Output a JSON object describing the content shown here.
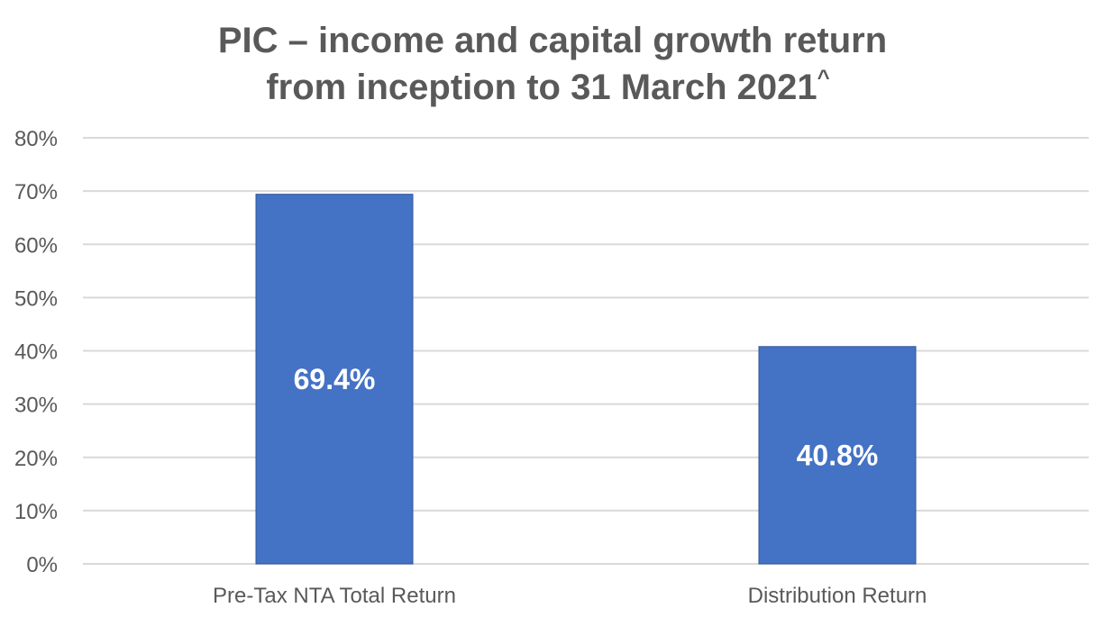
{
  "chart_data": {
    "type": "bar",
    "title_line1": "PIC – income and capital growth return",
    "title_line2": "from inception to 31 March 2021",
    "title_superscript": "^",
    "xlabel": "",
    "ylabel": "",
    "categories": [
      "Pre-Tax NTA Total Return",
      "Distribution Return"
    ],
    "values": [
      69.4,
      40.8
    ],
    "data_labels": [
      "69.4%",
      "40.8%"
    ],
    "ylim": [
      0,
      80
    ],
    "y_ticks": [
      "0%",
      "10%",
      "20%",
      "30%",
      "40%",
      "50%",
      "60%",
      "70%",
      "80%"
    ],
    "y_tick_values": [
      0,
      10,
      20,
      30,
      40,
      50,
      60,
      70,
      80
    ],
    "grid": true,
    "legend": "none",
    "bar_color": "#4472C4",
    "bar_edge_color": "#2F5597",
    "text_color": "#595959",
    "grid_color": "#D9D9D9",
    "data_label_color": "#FFFFFF"
  }
}
